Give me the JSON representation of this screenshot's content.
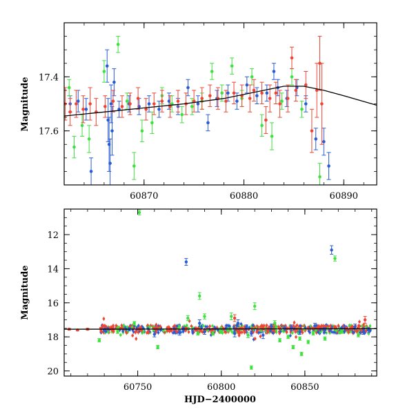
{
  "chart_data": [
    {
      "type": "scatter",
      "panel": "top",
      "title": "",
      "xlabel": "",
      "ylabel": "Magnitude",
      "xlim": [
        60862,
        60893.3
      ],
      "ylim": [
        17.2,
        17.8
      ],
      "y_inverted": true,
      "xticks": [
        60870,
        60880,
        60890
      ],
      "yticks": [
        17.4,
        17.6
      ],
      "grid": false,
      "legend": "none",
      "series": [
        {
          "color": "#2a5bd7",
          "points": [
            [
              60862.6,
              17.5,
              0.03
            ],
            [
              60863.4,
              17.49,
              0.04
            ],
            [
              60864.2,
              17.52,
              0.04
            ],
            [
              60864.7,
              17.75,
              0.05
            ],
            [
              60866.3,
              17.36,
              0.06
            ],
            [
              60866.4,
              17.56,
              0.08
            ],
            [
              60866.5,
              17.65,
              0.1
            ],
            [
              60866.6,
              17.72,
              0.09
            ],
            [
              60866.7,
              17.5,
              0.07
            ],
            [
              60866.8,
              17.6,
              0.09
            ],
            [
              60867.0,
              17.42,
              0.05
            ],
            [
              60867.5,
              17.52,
              0.03
            ],
            [
              60868.5,
              17.5,
              0.03
            ],
            [
              60869.5,
              17.51,
              0.03
            ],
            [
              60870.5,
              17.5,
              0.03
            ],
            [
              60871.5,
              17.52,
              0.03
            ],
            [
              60872.5,
              17.49,
              0.03
            ],
            [
              60873.4,
              17.51,
              0.03
            ],
            [
              60874.4,
              17.44,
              0.03
            ],
            [
              60875.4,
              17.5,
              0.03
            ],
            [
              60876.4,
              17.57,
              0.03
            ],
            [
              60877.3,
              17.48,
              0.03
            ],
            [
              60878.4,
              17.46,
              0.03
            ],
            [
              60879.3,
              17.49,
              0.03
            ],
            [
              60880.3,
              17.43,
              0.03
            ],
            [
              60881.3,
              17.47,
              0.03
            ],
            [
              60882.3,
              17.46,
              0.03
            ],
            [
              60883.0,
              17.38,
              0.03
            ],
            [
              60883.4,
              17.44,
              0.03
            ],
            [
              60884.3,
              17.48,
              0.03
            ],
            [
              60885.3,
              17.44,
              0.03
            ],
            [
              60886.2,
              17.5,
              0.03
            ],
            [
              60887.2,
              17.63,
              0.04
            ],
            [
              60888.0,
              17.64,
              0.05
            ],
            [
              60888.5,
              17.73,
              0.05
            ]
          ]
        },
        {
          "color": "#3fe03f",
          "points": [
            [
              60862.5,
              17.44,
              0.03
            ],
            [
              60863.0,
              17.66,
              0.04
            ],
            [
              60863.8,
              17.58,
              0.04
            ],
            [
              60864.5,
              17.63,
              0.05
            ],
            [
              60866.0,
              17.38,
              0.04
            ],
            [
              60867.4,
              17.28,
              0.03
            ],
            [
              60868.3,
              17.49,
              0.03
            ],
            [
              60869.0,
              17.73,
              0.05
            ],
            [
              60869.8,
              17.6,
              0.04
            ],
            [
              60870.8,
              17.57,
              0.04
            ],
            [
              60871.8,
              17.47,
              0.03
            ],
            [
              60872.8,
              17.5,
              0.03
            ],
            [
              60873.8,
              17.54,
              0.03
            ],
            [
              60874.8,
              17.51,
              0.03
            ],
            [
              60875.8,
              17.49,
              0.03
            ],
            [
              60876.8,
              17.38,
              0.03
            ],
            [
              60877.8,
              17.46,
              0.03
            ],
            [
              60878.8,
              17.36,
              0.03
            ],
            [
              60879.8,
              17.48,
              0.03
            ],
            [
              60880.8,
              17.4,
              0.03
            ],
            [
              60881.8,
              17.58,
              0.04
            ],
            [
              60882.8,
              17.62,
              0.05
            ],
            [
              60883.8,
              17.49,
              0.03
            ],
            [
              60884.8,
              17.4,
              0.03
            ],
            [
              60885.8,
              17.52,
              0.03
            ],
            [
              60887.6,
              17.77,
              0.05
            ]
          ]
        },
        {
          "color": "#ee4433",
          "points": [
            [
              60862.1,
              17.5,
              0.06
            ],
            [
              60862.6,
              17.53,
              0.05
            ],
            [
              60863.2,
              17.5,
              0.05
            ],
            [
              60863.9,
              17.52,
              0.05
            ],
            [
              60864.6,
              17.5,
              0.06
            ],
            [
              60865.2,
              17.53,
              0.05
            ],
            [
              60866.1,
              17.51,
              0.04
            ],
            [
              60866.9,
              17.49,
              0.04
            ],
            [
              60867.8,
              17.51,
              0.04
            ],
            [
              60868.6,
              17.5,
              0.04
            ],
            [
              60869.4,
              17.48,
              0.04
            ],
            [
              60870.2,
              17.52,
              0.04
            ],
            [
              60871.0,
              17.5,
              0.04
            ],
            [
              60871.8,
              17.49,
              0.04
            ],
            [
              60872.6,
              17.51,
              0.04
            ],
            [
              60873.4,
              17.49,
              0.04
            ],
            [
              60874.2,
              17.5,
              0.04
            ],
            [
              60875.0,
              17.49,
              0.04
            ],
            [
              60875.8,
              17.48,
              0.04
            ],
            [
              60876.6,
              17.47,
              0.04
            ],
            [
              60877.4,
              17.48,
              0.04
            ],
            [
              60878.2,
              17.49,
              0.04
            ],
            [
              60879.0,
              17.46,
              0.04
            ],
            [
              60879.8,
              17.47,
              0.04
            ],
            [
              60880.6,
              17.48,
              0.05
            ],
            [
              60881.0,
              17.45,
              0.04
            ],
            [
              60881.8,
              17.46,
              0.04
            ],
            [
              60882.2,
              17.56,
              0.05
            ],
            [
              60882.6,
              17.48,
              0.05
            ],
            [
              60883.2,
              17.46,
              0.04
            ],
            [
              60883.6,
              17.5,
              0.05
            ],
            [
              60884.4,
              17.48,
              0.05
            ],
            [
              60884.8,
              17.33,
              0.04
            ],
            [
              60885.2,
              17.45,
              0.04
            ],
            [
              60886.2,
              17.43,
              0.05
            ],
            [
              60886.8,
              17.6,
              0.08
            ],
            [
              60887.3,
              17.45,
              0.1
            ],
            [
              60887.6,
              17.35,
              0.1
            ],
            [
              60887.8,
              17.5,
              0.15
            ]
          ]
        }
      ],
      "model_curve": {
        "color": "#000000",
        "points": [
          [
            60862,
            17.545
          ],
          [
            60866,
            17.53
          ],
          [
            60870,
            17.515
          ],
          [
            60874,
            17.5
          ],
          [
            60878,
            17.48
          ],
          [
            60882,
            17.45
          ],
          [
            60884,
            17.435
          ],
          [
            60886,
            17.435
          ],
          [
            60888,
            17.45
          ],
          [
            60890,
            17.47
          ],
          [
            60893.3,
            17.505
          ]
        ]
      }
    },
    {
      "type": "scatter",
      "panel": "bottom",
      "title": "",
      "xlabel": "HJD−2400000",
      "ylabel": "Magnitude",
      "xlim": [
        60706,
        60893
      ],
      "ylim": [
        10.5,
        20.3
      ],
      "y_inverted": true,
      "xticks": [
        60750,
        60800,
        60850
      ],
      "yticks": [
        12,
        14,
        16,
        18,
        20
      ],
      "grid": false,
      "legend": "none",
      "series": [
        {
          "color": "#2a5bd7",
          "points": [
            [
              60730,
              17.6,
              0.1
            ],
            [
              60745,
              17.55,
              0.1
            ],
            [
              60760,
              17.85,
              0.15
            ],
            [
              60775,
              17.75,
              0.15
            ],
            [
              60779,
              13.6,
              0.2
            ],
            [
              60787,
              17.2,
              0.2
            ],
            [
              60790,
              17.7,
              0.15
            ],
            [
              60803,
              17.5,
              0.15
            ],
            [
              60808,
              17.8,
              0.2
            ],
            [
              60810,
              17.2,
              0.2
            ],
            [
              60815,
              17.45,
              0.15
            ],
            [
              60818,
              17.8,
              0.15
            ],
            [
              60825,
              17.9,
              0.2
            ],
            [
              60830,
              17.4,
              0.15
            ],
            [
              60838,
              17.5,
              0.15
            ],
            [
              60842,
              17.45,
              0.15
            ],
            [
              60847,
              17.7,
              0.15
            ],
            [
              60856,
              17.35,
              0.15
            ],
            [
              60862,
              17.6,
              0.15
            ],
            [
              60866,
              12.9,
              0.25
            ],
            [
              60874,
              17.5,
              0.15
            ],
            [
              60880,
              17.4,
              0.15
            ],
            [
              60885,
              17.7,
              0.15
            ],
            [
              60888,
              17.6,
              0.15
            ]
          ]
        },
        {
          "color": "#3fe03f",
          "points": [
            [
              60727,
              18.2,
              0.1
            ],
            [
              60738,
              17.7,
              0.1
            ],
            [
              60748,
              17.2,
              0.1
            ],
            [
              60751,
              10.7,
              0.15
            ],
            [
              60762,
              18.6,
              0.1
            ],
            [
              60780,
              16.9,
              0.15
            ],
            [
              60786,
              17.8,
              0.1
            ],
            [
              60787,
              15.6,
              0.2
            ],
            [
              60790,
              16.8,
              0.15
            ],
            [
              60795,
              17.8,
              0.1
            ],
            [
              60800,
              17.7,
              0.1
            ],
            [
              60804,
              17.6,
              0.1
            ],
            [
              60806,
              16.8,
              0.2
            ],
            [
              60812,
              17.5,
              0.1
            ],
            [
              60816,
              17.9,
              0.15
            ],
            [
              60818,
              19.8,
              0.1
            ],
            [
              60820,
              16.2,
              0.2
            ],
            [
              60824,
              17.6,
              0.1
            ],
            [
              60832,
              17.2,
              0.15
            ],
            [
              60835,
              18.2,
              0.1
            ],
            [
              60840,
              18.0,
              0.1
            ],
            [
              60843,
              18.6,
              0.1
            ],
            [
              60847,
              18.1,
              0.1
            ],
            [
              60848,
              19.0,
              0.1
            ],
            [
              60852,
              18.3,
              0.1
            ],
            [
              60855,
              17.8,
              0.1
            ],
            [
              60862,
              18.1,
              0.1
            ],
            [
              60868,
              13.4,
              0.15
            ],
            [
              60872,
              17.7,
              0.1
            ],
            [
              60882,
              17.9,
              0.1
            ]
          ]
        },
        {
          "color": "#ee4433",
          "points": [
            [
              60709,
              17.55,
              0.05
            ],
            [
              60714,
              17.6,
              0.05
            ],
            [
              60720,
              17.55,
              0.05
            ],
            [
              60728,
              17.5,
              0.05
            ],
            [
              60740,
              17.5,
              0.05
            ],
            [
              60752,
              17.6,
              0.05
            ],
            [
              60760,
              17.5,
              0.05
            ],
            [
              60770,
              17.55,
              0.05
            ],
            [
              60779,
              17.5,
              0.05
            ],
            [
              60785,
              17.6,
              0.05
            ],
            [
              60795,
              17.55,
              0.05
            ],
            [
              60808,
              16.9,
              0.2
            ],
            [
              60812,
              17.5,
              0.05
            ],
            [
              60825,
              17.55,
              0.05
            ],
            [
              60835,
              17.5,
              0.05
            ],
            [
              60845,
              17.55,
              0.05
            ],
            [
              60855,
              17.5,
              0.05
            ],
            [
              60868,
              17.4,
              0.05
            ],
            [
              60875,
              17.5,
              0.05
            ],
            [
              60886,
              17.0,
              0.2
            ]
          ]
        }
      ],
      "dense_band": {
        "y_center": 17.55,
        "x_start": 60728,
        "x_end": 60890,
        "color": "#ee4433"
      },
      "model_curve": {
        "color": "#000000",
        "points": [
          [
            60706,
            17.55
          ],
          [
            60893,
            17.52
          ]
        ]
      }
    }
  ]
}
